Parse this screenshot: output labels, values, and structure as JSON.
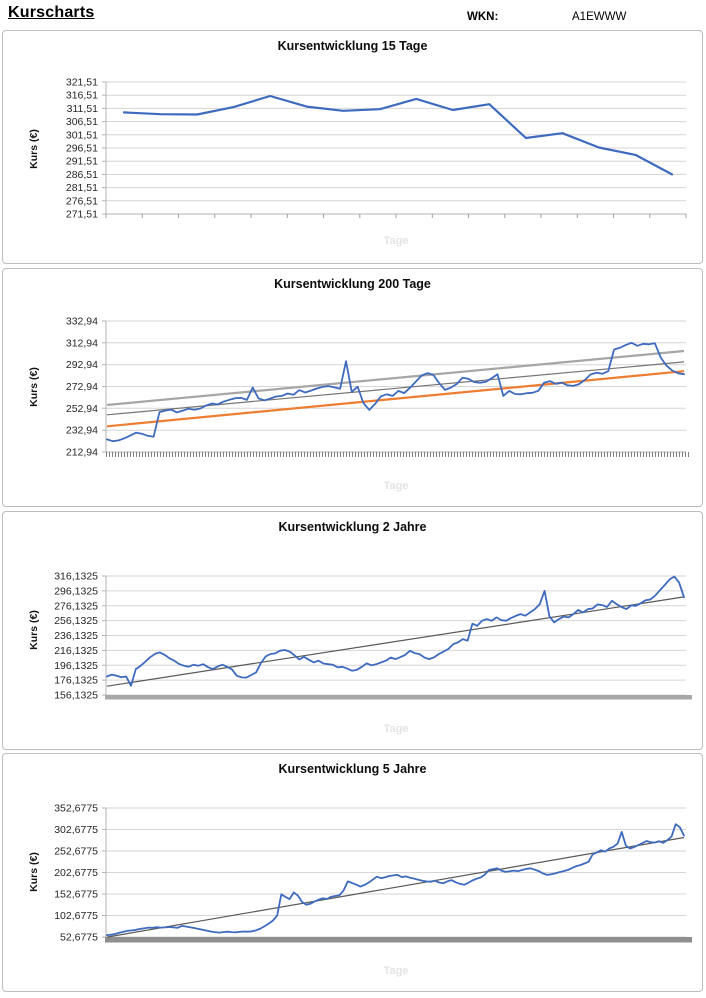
{
  "header": {
    "title": "Kurscharts",
    "wkn_label": "WKN:",
    "wkn_value": "A1EWWW"
  },
  "colors": {
    "price_line": "#3f6bbf",
    "trend_orange": "#ED7D31",
    "channel_light_gray": "#A6A6A6",
    "channel_dark_gray": "#757575",
    "trend_dark": "#595959",
    "gridline": "#d6d6d6",
    "axis": "#b3b3b3"
  },
  "chart_data": [
    {
      "type": "line",
      "title": "Kursentwicklung 15 Tage",
      "ylabel": "Kurs (€)",
      "xlabel": "Tage",
      "grid": true,
      "legend": "none",
      "ylim": [
        271.51,
        321.51
      ],
      "y_ticks": [
        "321,51",
        "316,51",
        "311,51",
        "306,51",
        "301,51",
        "296,51",
        "291,51",
        "286,51",
        "281,51",
        "276,51",
        "271,51"
      ],
      "x_axis": "ticks",
      "x_tick_intervals": 16,
      "series": [
        {
          "name": "kurs-linie",
          "color": "#3f6bbf",
          "width": 2.2,
          "values": [
            310.0,
            309.3,
            309.2,
            312.0,
            316.2,
            312.2,
            310.6,
            311.2,
            315.1,
            310.9,
            313.1,
            300.3,
            302.1,
            296.7,
            293.9,
            286.5
          ]
        }
      ],
      "lines": []
    },
    {
      "type": "line",
      "title": "Kursentwicklung 200 Tage",
      "ylabel": "Kurs (€)",
      "xlabel": "Tage",
      "grid": true,
      "legend": "none",
      "ylim": [
        212.94,
        332.94
      ],
      "y_ticks": [
        "332,94",
        "312,94",
        "292,94",
        "272,94",
        "252,94",
        "232,94",
        "212,94"
      ],
      "x_axis": "dense-ticks",
      "series": [
        {
          "name": "kurs-linie",
          "color": "#3f6bbf",
          "width": 1.8,
          "values": [
            224.5,
            222.8,
            223.6,
            225.6,
            228.0,
            230.6,
            229.6,
            227.8,
            226.9,
            249.5,
            250.9,
            251.8,
            249.2,
            250.9,
            252.6,
            251.7,
            252.8,
            255.4,
            257.4,
            256.5,
            259.1,
            260.8,
            262.2,
            262.6,
            260.7,
            272.0,
            262.0,
            260.2,
            261.9,
            263.8,
            264.3,
            266.5,
            265.3,
            269.6,
            267.4,
            269.2,
            271.1,
            272.6,
            273.3,
            272.1,
            270.8,
            296.0,
            268.0,
            272.8,
            257.8,
            251.5,
            257.0,
            264.0,
            265.8,
            264.3,
            268.9,
            266.9,
            271.8,
            277.5,
            283.0,
            285.2,
            283.5,
            276.0,
            269.8,
            271.9,
            275.2,
            281.0,
            280.0,
            277.0,
            276.4,
            277.2,
            280.5,
            284.2,
            264.3,
            268.9,
            266.1,
            265.8,
            266.8,
            267.2,
            269.0,
            276.4,
            277.9,
            275.3,
            276.5,
            274.0,
            273.5,
            275.1,
            279.0,
            284.0,
            285.5,
            284.6,
            287.0,
            306.8,
            308.4,
            311.0,
            313.0,
            310.2,
            312.1,
            311.6,
            312.5,
            299.5,
            292.0,
            287.5,
            285.0,
            284.2
          ]
        }
      ],
      "lines": [
        {
          "name": "trendlinie-orange",
          "color": "#ED7D31",
          "width": 2.2,
          "from": 236.5,
          "to": 287.0
        },
        {
          "name": "kanallinie-grau-hell",
          "color": "#A6A6A6",
          "width": 2.2,
          "from": 256.0,
          "to": 305.5
        },
        {
          "name": "kanallinie-grau-dunkel",
          "color": "#757575",
          "width": 1.2,
          "from": 247.0,
          "to": 295.5
        }
      ]
    },
    {
      "type": "line",
      "title": "Kursentwicklung 2 Jahre",
      "ylabel": "Kurs (€)",
      "xlabel": "Tage",
      "grid": true,
      "legend": "none",
      "ylim": [
        156.1325,
        316.1325
      ],
      "y_ticks": [
        "316,1325",
        "296,1325",
        "276,1325",
        "256,1325",
        "236,1325",
        "216,1325",
        "196,1325",
        "176,1325",
        "156,1325"
      ],
      "x_axis": "band",
      "band_color": "#a8a8a8",
      "series": [
        {
          "name": "kurs-linie",
          "color": "#3f6bbf",
          "width": 1.8,
          "values": [
            181.0,
            183.5,
            182.0,
            180.0,
            181.0,
            168.5,
            191.0,
            195.5,
            201.0,
            207.0,
            211.5,
            213.4,
            210.0,
            205.5,
            202.3,
            197.8,
            195.5,
            194.2,
            196.9,
            195.5,
            197.5,
            193.5,
            191.0,
            194.5,
            196.9,
            194.0,
            190.5,
            182.0,
            179.8,
            179.5,
            183.0,
            186.5,
            199.0,
            208.0,
            211.2,
            212.0,
            215.7,
            216.6,
            214.5,
            209.5,
            204.0,
            207.5,
            203.5,
            200.0,
            202.2,
            198.5,
            197.5,
            196.8,
            193.2,
            194.1,
            191.5,
            188.7,
            190.0,
            194.0,
            198.6,
            196.0,
            197.5,
            200.0,
            202.2,
            206.6,
            204.4,
            207.0,
            210.0,
            215.6,
            212.5,
            211.1,
            206.5,
            204.4,
            206.7,
            211.1,
            214.5,
            218.0,
            224.6,
            226.9,
            231.3,
            229.1,
            252.0,
            249.2,
            256.0,
            258.2,
            256.0,
            260.5,
            256.9,
            256.0,
            259.5,
            262.5,
            264.9,
            262.7,
            267.2,
            271.6,
            278.4,
            296.3,
            262.0,
            253.7,
            258.2,
            261.5,
            260.5,
            264.9,
            270.5,
            267.2,
            271.5,
            272.5,
            278.0,
            277.0,
            274.5,
            282.8,
            278.4,
            274.5,
            271.6,
            276.5,
            276.0,
            279.5,
            283.5,
            284.5,
            289.6,
            297.0,
            304.0,
            311.5,
            315.5,
            307.0,
            287.5
          ]
        }
      ],
      "lines": [
        {
          "name": "trendlinie",
          "color": "#595959",
          "width": 1.2,
          "from": 168.0,
          "to": 288.0
        }
      ]
    },
    {
      "type": "line",
      "title": "Kursentwicklung 5 Jahre",
      "ylabel": "Kurs (€)",
      "xlabel": "Tage",
      "grid": true,
      "legend": "none",
      "ylim": [
        52.6775,
        352.6775
      ],
      "y_ticks": [
        "352,6775",
        "302,6775",
        "252,6775",
        "202,6775",
        "152,6775",
        "102,6775",
        "52,6775"
      ],
      "x_axis": "band-thick",
      "band_color": "#8f8f8f",
      "series": [
        {
          "name": "kurs-linie",
          "color": "#3f6bbf",
          "width": 1.8,
          "values": [
            57.0,
            58.0,
            60.0,
            62.5,
            65.0,
            67.0,
            68.0,
            69.5,
            71.5,
            73.0,
            74.5,
            74.0,
            75.5,
            74.5,
            75.0,
            76.0,
            75.0,
            74.0,
            78.5,
            77.0,
            75.5,
            73.5,
            71.5,
            69.5,
            67.5,
            65.5,
            64.0,
            63.0,
            64.0,
            65.0,
            64.0,
            63.5,
            64.5,
            65.5,
            65.0,
            66.0,
            68.5,
            72.5,
            78.0,
            84.0,
            91.0,
            103.0,
            152.0,
            146.0,
            140.5,
            156.5,
            149.0,
            134.0,
            127.5,
            130.0,
            135.5,
            139.5,
            143.0,
            141.0,
            146.5,
            148.0,
            150.0,
            161.0,
            182.0,
            178.5,
            174.5,
            170.0,
            173.5,
            179.0,
            186.0,
            193.0,
            189.5,
            191.5,
            194.5,
            196.0,
            197.0,
            192.0,
            193.5,
            190.5,
            188.5,
            186.0,
            183.5,
            182.0,
            181.0,
            183.5,
            179.5,
            177.5,
            182.0,
            185.0,
            180.0,
            176.5,
            174.0,
            178.5,
            184.0,
            188.0,
            191.0,
            197.5,
            208.5,
            210.5,
            212.5,
            207.0,
            204.0,
            205.5,
            207.0,
            206.0,
            208.5,
            211.0,
            212.5,
            209.5,
            206.0,
            200.5,
            197.0,
            198.5,
            200.5,
            203.5,
            206.0,
            208.5,
            213.0,
            217.0,
            220.0,
            223.5,
            227.5,
            245.0,
            249.5,
            254.5,
            251.0,
            258.5,
            262.5,
            270.0,
            297.0,
            265.0,
            258.5,
            262.0,
            266.5,
            271.0,
            276.0,
            273.0,
            272.5,
            275.5,
            271.5,
            278.0,
            286.0,
            315.0,
            308.0,
            288.5
          ]
        }
      ],
      "lines": [
        {
          "name": "trendlinie",
          "color": "#595959",
          "width": 1.2,
          "from": 52.5,
          "to": 284.0
        }
      ]
    }
  ]
}
